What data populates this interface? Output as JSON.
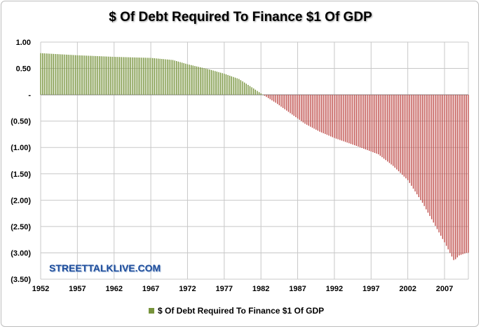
{
  "chart_data": {
    "type": "bar",
    "title": "$ Of Debt Required To Finance $1 Of GDP",
    "xlabel": "",
    "ylabel": "",
    "ylim": [
      -3.5,
      1.0
    ],
    "y_ticks": [
      "1.00",
      "0.50",
      "-",
      "(0.50)",
      "(1.00)",
      "(1.50)",
      "(2.00)",
      "(2.50)",
      "(3.00)",
      "(3.50)"
    ],
    "x_ticks": [
      "1952",
      "1957",
      "1962",
      "1967",
      "1972",
      "1977",
      "1982",
      "1987",
      "1992",
      "1997",
      "2002",
      "2007"
    ],
    "x_range": [
      1952,
      2010.25
    ],
    "gridlines": "vertical and horizontal",
    "legend_position": "bottom",
    "positive_color": "#77933c",
    "negative_color": "#c0504d",
    "series": [
      {
        "name": "$ Of Debt Required To Finance $1 Of GDP",
        "points": [
          {
            "x": 1952,
            "y": 0.79
          },
          {
            "x": 1957,
            "y": 0.75
          },
          {
            "x": 1962,
            "y": 0.72
          },
          {
            "x": 1967,
            "y": 0.7
          },
          {
            "x": 1970,
            "y": 0.66
          },
          {
            "x": 1972,
            "y": 0.58
          },
          {
            "x": 1975,
            "y": 0.48
          },
          {
            "x": 1977,
            "y": 0.4
          },
          {
            "x": 1979,
            "y": 0.3
          },
          {
            "x": 1981,
            "y": 0.12
          },
          {
            "x": 1982.5,
            "y": -0.02
          },
          {
            "x": 1984,
            "y": -0.15
          },
          {
            "x": 1986,
            "y": -0.35
          },
          {
            "x": 1988,
            "y": -0.55
          },
          {
            "x": 1990,
            "y": -0.7
          },
          {
            "x": 1992,
            "y": -0.82
          },
          {
            "x": 1995,
            "y": -0.97
          },
          {
            "x": 1998,
            "y": -1.13
          },
          {
            "x": 2000,
            "y": -1.35
          },
          {
            "x": 2002,
            "y": -1.62
          },
          {
            "x": 2004,
            "y": -2.05
          },
          {
            "x": 2006,
            "y": -2.55
          },
          {
            "x": 2007,
            "y": -2.8
          },
          {
            "x": 2008.3,
            "y": -3.15
          },
          {
            "x": 2009,
            "y": -3.05
          },
          {
            "x": 2010,
            "y": -3.0
          }
        ]
      }
    ]
  },
  "watermark": "STREETTALKLIVE.COM",
  "legend": {
    "label": "$ Of Debt Required To Finance $1 Of GDP"
  }
}
